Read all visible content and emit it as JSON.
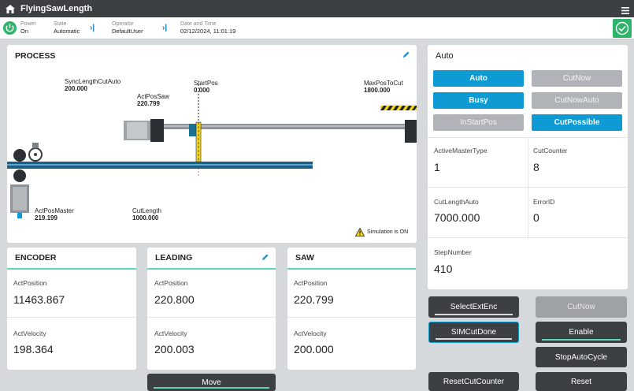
{
  "app": {
    "title": "FlyingSawLength"
  },
  "status": {
    "power": {
      "label": "Power",
      "value": "On"
    },
    "state": {
      "label": "State",
      "value": "Automatic"
    },
    "operator": {
      "label": "Operator",
      "value": "DefaultUser"
    },
    "datetime": {
      "label": "Date and Time",
      "value": "02/12/2024, 11:01:19"
    }
  },
  "process": {
    "title": "PROCESS",
    "sync_length": {
      "label": "SyncLengthCutAuto",
      "value": "200.000"
    },
    "act_pos_saw": {
      "label": "ActPosSaw",
      "value": "220.799"
    },
    "start_pos": {
      "label": "StartPos",
      "value": "0.000"
    },
    "max_pos": {
      "label": "MaxPosToCut",
      "value": "1800.000"
    },
    "act_pos_master": {
      "label": "ActPosMaster",
      "value": "219.199"
    },
    "cut_length": {
      "label": "CutLength",
      "value": "1000.000"
    },
    "simulation": "Simulation is ON"
  },
  "encoder": {
    "title": "ENCODER",
    "pos_label": "ActPosition",
    "pos_value": "11463.867",
    "vel_label": "ActVelocity",
    "vel_value": "198.364"
  },
  "leading": {
    "title": "LEADING",
    "pos_label": "ActPosition",
    "pos_value": "220.800",
    "vel_label": "ActVelocity",
    "vel_value": "200.003"
  },
  "saw": {
    "title": "SAW",
    "pos_label": "ActPosition",
    "pos_value": "220.799",
    "vel_label": "ActVelocity",
    "vel_value": "200.000"
  },
  "auto": {
    "title": "Auto",
    "buttons": {
      "auto": "Auto",
      "cutnow": "CutNow",
      "busy": "Busy",
      "cutnowauto": "CutNowAuto",
      "instartpos": "InStartPos",
      "cutpossible": "CutPossible"
    },
    "active_master_type": {
      "label": "ActiveMasterType",
      "value": "1"
    },
    "cut_counter": {
      "label": "CutCounter",
      "value": "8"
    },
    "cut_length_auto": {
      "label": "CutLengthAuto",
      "value": "7000.000"
    },
    "error_id": {
      "label": "ErrorID",
      "value": "0"
    },
    "step_number": {
      "label": "StepNumber",
      "value": "410"
    }
  },
  "actions": {
    "move": "Move",
    "select_ext_enc": "SelectExtEnc",
    "sim_cut_done": "SIMCutDone",
    "reset_cut_counter": "ResetCutCounter",
    "cut_now": "CutNow",
    "enable": "Enable",
    "stop_auto_cycle": "StopAutoCycle",
    "reset": "Reset"
  }
}
